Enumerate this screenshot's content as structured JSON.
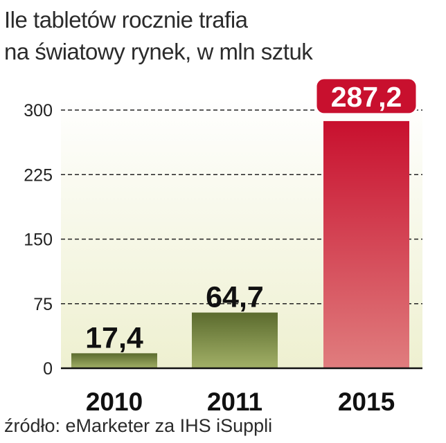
{
  "chart_data": {
    "type": "bar",
    "title_lines": [
      "Ile tabletów rocznie trafia",
      "na światowy rynek, w mln sztuk"
    ],
    "categories": [
      "2010",
      "2011",
      "2015"
    ],
    "values": [
      17.4,
      64.7,
      287.2
    ],
    "value_labels": [
      "17,4",
      "64,7",
      "287,2"
    ],
    "yticks": [
      "0",
      "75",
      "150",
      "225",
      "300"
    ],
    "ytick_values": [
      0,
      75,
      150,
      225,
      300
    ],
    "ylim": [
      0,
      300
    ],
    "grid": true,
    "highlight_index": 2,
    "source": "źródło: eMarketer za IHS iSuppli"
  },
  "colors": {
    "background": "#f3f4dc",
    "bar_dark_top": "#5b6b2e",
    "bar_dark_bottom": "#a2b067",
    "bar_red_top": "#c8102e",
    "bar_red_bottom": "#e07d7e",
    "label_red_bg": "#c8102e"
  }
}
